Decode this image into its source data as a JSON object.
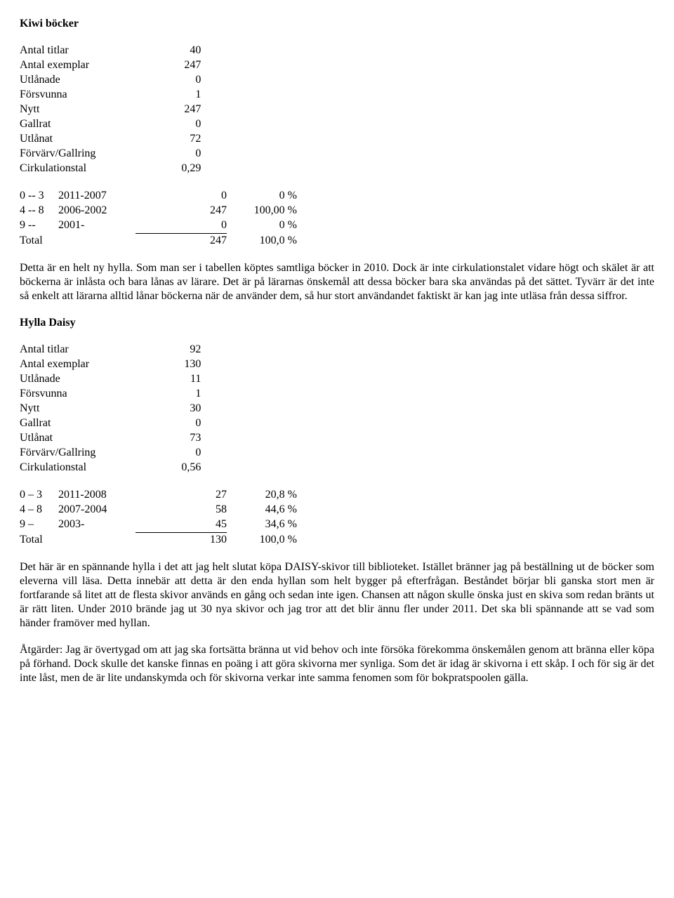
{
  "section1": {
    "title": "Kiwi böcker",
    "stats": {
      "rows": [
        {
          "label": "Antal titlar",
          "value": "40"
        },
        {
          "label": "Antal exemplar",
          "value": "247"
        },
        {
          "label": "Utlånade",
          "value": "0"
        },
        {
          "label": "Försvunna",
          "value": "1"
        },
        {
          "label": "Nytt",
          "value": "247"
        },
        {
          "label": "Gallrat",
          "value": "0"
        },
        {
          "label": "Utlånat",
          "value": "72"
        },
        {
          "label": "Förvärv/Gallring",
          "value": "0"
        },
        {
          "label": "Cirkulationstal",
          "value": "0,29"
        }
      ]
    },
    "age": {
      "rows": [
        {
          "c0": "0 -- 3",
          "c1": "2011-2007",
          "c2": "0",
          "c3": "0 %"
        },
        {
          "c0": "4 -- 8",
          "c1": "2006-2002",
          "c2": "247",
          "c3": "100,00 %"
        },
        {
          "c0": "9 --",
          "c1": "2001-",
          "c2": "0",
          "c3": "0 %"
        }
      ],
      "total": {
        "c0": "Total",
        "c1": "",
        "c2": "247",
        "c3": "100,0 %"
      }
    },
    "para": "Detta är en helt ny hylla. Som man ser i tabellen köptes samtliga böcker in 2010. Dock är inte cirkulationstalet vidare högt och skälet är att böckerna är inlåsta och bara lånas av lärare. Det är på lärarnas önskemål att dessa böcker bara ska användas på det sättet. Tyvärr är det inte så enkelt att lärarna alltid lånar böckerna när de använder dem, så hur stort användandet faktiskt är kan jag inte utläsa från dessa siffror."
  },
  "section2": {
    "title": "Hylla Daisy",
    "stats": {
      "rows": [
        {
          "label": "Antal titlar",
          "value": "92"
        },
        {
          "label": "Antal exemplar",
          "value": "130"
        },
        {
          "label": "Utlånade",
          "value": "11"
        },
        {
          "label": "Försvunna",
          "value": "1"
        },
        {
          "label": "Nytt",
          "value": "30"
        },
        {
          "label": "Gallrat",
          "value": "0"
        },
        {
          "label": "Utlånat",
          "value": "73"
        },
        {
          "label": "Förvärv/Gallring",
          "value": "0"
        },
        {
          "label": "Cirkulationstal",
          "value": "0,56"
        }
      ]
    },
    "age": {
      "rows": [
        {
          "c0": "0 – 3",
          "c1": "2011-2008",
          "c2": "27",
          "c3": "20,8 %"
        },
        {
          "c0": "4 – 8",
          "c1": "2007-2004",
          "c2": "58",
          "c3": "44,6 %"
        },
        {
          "c0": "9 –",
          "c1": "2003-",
          "c2": "45",
          "c3": "34,6 %"
        }
      ],
      "total": {
        "c0": "Total",
        "c1": "",
        "c2": "130",
        "c3": "100,0 %"
      }
    },
    "para1": "Det här är en spännande hylla i det att jag helt slutat köpa DAISY-skivor till biblioteket. Istället bränner jag på beställning ut de böcker som eleverna vill läsa. Detta innebär att detta är den enda hyllan som helt bygger på efterfrågan. Beståndet börjar bli ganska stort men är fortfarande så litet att de flesta skivor används en gång och sedan inte igen. Chansen att någon skulle önska just en skiva som redan bränts ut är rätt liten. Under 2010 brände jag ut 30 nya skivor och jag tror att det blir ännu fler under 2011. Det ska bli spännande att se vad som händer framöver med hyllan.",
    "para2": "Åtgärder: Jag är övertygad om att jag ska fortsätta bränna ut vid behov och inte försöka förekomma önskemålen genom att bränna eller köpa på förhand. Dock skulle det kanske finnas en poäng i att göra skivorna mer synliga. Som det är idag är skivorna i ett skåp. I och för sig är det inte låst, men de är lite undanskymda och för skivorna verkar inte samma fenomen som för bokpratspoolen gälla."
  }
}
